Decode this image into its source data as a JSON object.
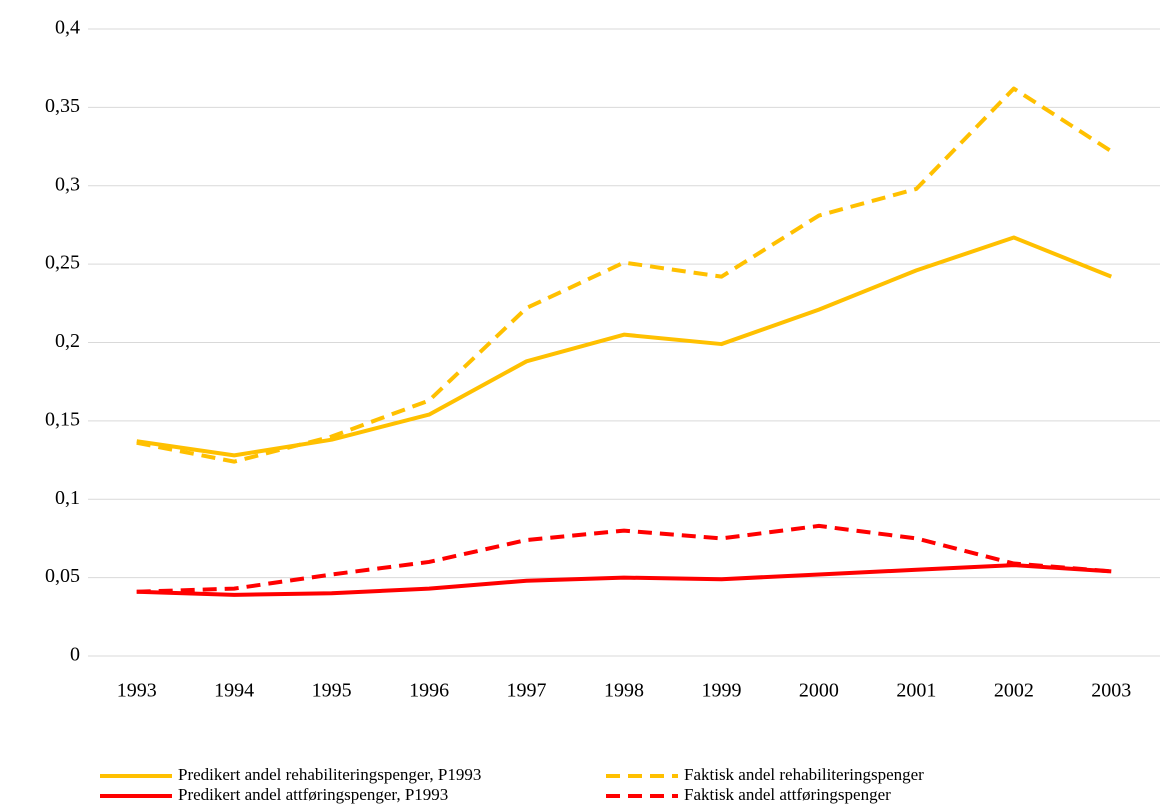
{
  "chart_data": {
    "type": "line",
    "categories": [
      "1993",
      "1994",
      "1995",
      "1996",
      "1997",
      "1998",
      "1999",
      "2000",
      "2001",
      "2002",
      "2003"
    ],
    "series": [
      {
        "name": "Predikert andel rehabiliteringspenger, P1993",
        "color": "#FFC000",
        "dashed": false,
        "values": [
          0.137,
          0.128,
          0.138,
          0.154,
          0.188,
          0.205,
          0.199,
          0.221,
          0.246,
          0.267,
          0.242
        ]
      },
      {
        "name": "Faktisk andel rehabiliteringspenger",
        "color": "#FFC000",
        "dashed": true,
        "values": [
          0.136,
          0.124,
          0.14,
          0.163,
          0.222,
          0.251,
          0.242,
          0.281,
          0.298,
          0.362,
          0.322
        ]
      },
      {
        "name": "Predikert andel attføringspenger, P1993",
        "color": "#FF0000",
        "dashed": false,
        "values": [
          0.041,
          0.039,
          0.04,
          0.043,
          0.048,
          0.05,
          0.049,
          0.052,
          0.055,
          0.058,
          0.054
        ]
      },
      {
        "name": "Faktisk andel attføringspenger",
        "color": "#FF0000",
        "dashed": true,
        "values": [
          0.041,
          0.043,
          0.052,
          0.06,
          0.074,
          0.08,
          0.075,
          0.083,
          0.075,
          0.059,
          0.054
        ]
      }
    ],
    "ylim": [
      0,
      0.4
    ],
    "yticks": [
      0,
      {
        "value": 0.05,
        "label": "0,05"
      },
      {
        "value": 0.1,
        "label": "0,1"
      },
      {
        "value": 0.15,
        "label": "0,15"
      },
      {
        "value": 0.2,
        "label": "0,2"
      },
      {
        "value": 0.25,
        "label": "0,25"
      },
      {
        "value": 0.3,
        "label": "0,3"
      },
      {
        "value": 0.35,
        "label": "0,35"
      },
      {
        "value": 0.4,
        "label": "0,4"
      }
    ],
    "grid": true,
    "legend": "bottom"
  }
}
